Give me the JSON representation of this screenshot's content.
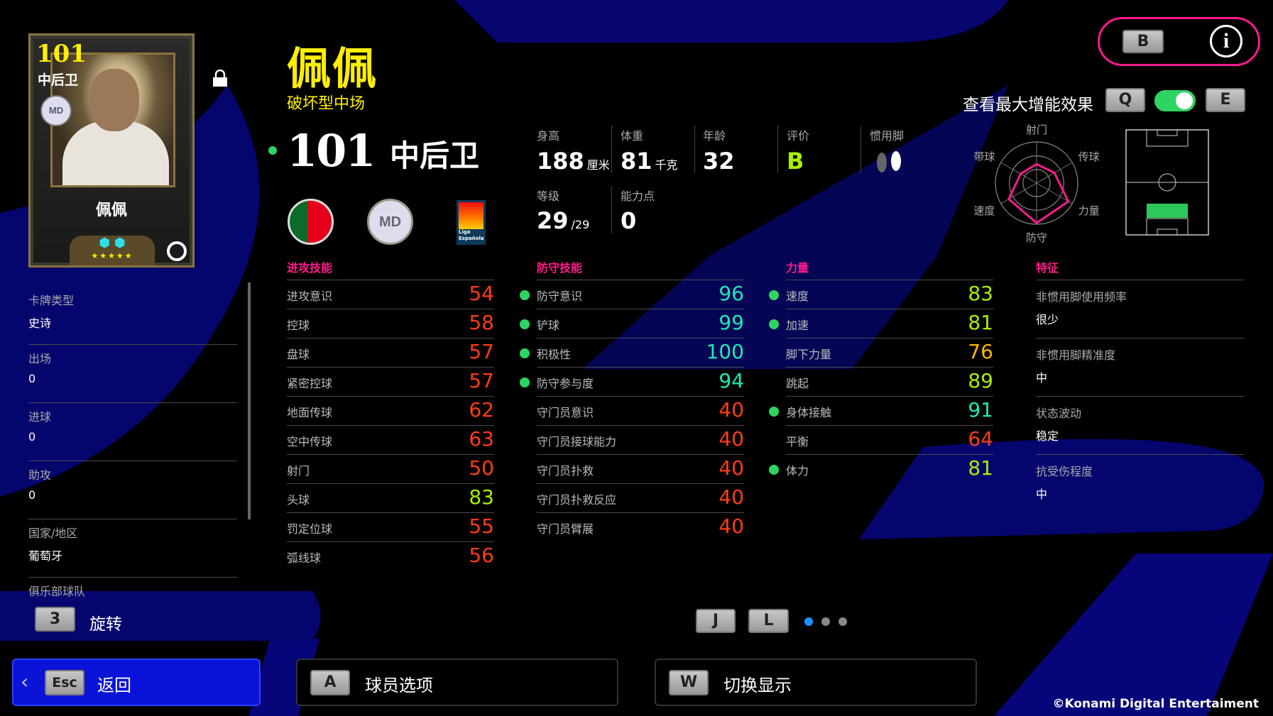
{
  "card": {
    "rating": "101",
    "position": "中后卫",
    "name": "佩佩",
    "club_abbr": "MD",
    "stars": "★★★★★"
  },
  "player": {
    "name": "佩佩",
    "playstyle": "破坏型中场",
    "rating": "101",
    "position": "中后卫"
  },
  "info": {
    "height": {
      "label": "身高",
      "value": "188",
      "unit": "厘米"
    },
    "weight": {
      "label": "体重",
      "value": "81",
      "unit": "千克"
    },
    "age": {
      "label": "年龄",
      "value": "32"
    },
    "grade": {
      "label": "评价",
      "value": "B"
    },
    "foot": {
      "label": "惯用脚",
      "icon": "footprints-icon"
    },
    "level": {
      "label": "等级",
      "value": "29",
      "max": "/29"
    },
    "points": {
      "label": "能力点",
      "value": "0"
    }
  },
  "badges": {
    "nation_flag": "portugal-flag-icon",
    "club_badge": "MD",
    "league": "Liga Española"
  },
  "left_panel": [
    {
      "label": "卡牌类型",
      "value": "史诗"
    },
    {
      "label": "出场",
      "value": "0"
    },
    {
      "label": "进球",
      "value": "0"
    },
    {
      "label": "助攻",
      "value": "0"
    },
    {
      "label": "国家/地区",
      "value": "葡萄牙"
    },
    {
      "label": "俱乐部球队",
      "value": ""
    }
  ],
  "stat_colors": {
    "elite": "#1de9b6",
    "high": "#a6f000",
    "mid": "#ffb400",
    "low": "#ff3c14"
  },
  "sections": [
    {
      "title": "进攻技能",
      "stats": [
        {
          "name": "进攻意识",
          "value": 54,
          "boost": false
        },
        {
          "name": "控球",
          "value": 58,
          "boost": false
        },
        {
          "name": "盘球",
          "value": 57,
          "boost": false
        },
        {
          "name": "紧密控球",
          "value": 57,
          "boost": false
        },
        {
          "name": "地面传球",
          "value": 62,
          "boost": false
        },
        {
          "name": "空中传球",
          "value": 63,
          "boost": false
        },
        {
          "name": "射门",
          "value": 50,
          "boost": false
        },
        {
          "name": "头球",
          "value": 83,
          "boost": false
        },
        {
          "name": "罚定位球",
          "value": 55,
          "boost": false
        },
        {
          "name": "弧线球",
          "value": 56,
          "boost": false
        }
      ]
    },
    {
      "title": "防守技能",
      "stats": [
        {
          "name": "防守意识",
          "value": 96,
          "boost": true
        },
        {
          "name": "铲球",
          "value": 99,
          "boost": true
        },
        {
          "name": "积极性",
          "value": 100,
          "boost": true
        },
        {
          "name": "防守参与度",
          "value": 94,
          "boost": true
        },
        {
          "name": "守门员意识",
          "value": 40,
          "boost": false
        },
        {
          "name": "守门员接球能力",
          "value": 40,
          "boost": false
        },
        {
          "name": "守门员扑救",
          "value": 40,
          "boost": false
        },
        {
          "name": "守门员扑救反应",
          "value": 40,
          "boost": false
        },
        {
          "name": "守门员臂展",
          "value": 40,
          "boost": false
        }
      ]
    },
    {
      "title": "力量",
      "stats": [
        {
          "name": "速度",
          "value": 83,
          "boost": true
        },
        {
          "name": "加速",
          "value": 81,
          "boost": true
        },
        {
          "name": "脚下力量",
          "value": 76,
          "boost": false
        },
        {
          "name": "跳起",
          "value": 89,
          "boost": false
        },
        {
          "name": "身体接触",
          "value": 91,
          "boost": true
        },
        {
          "name": "平衡",
          "value": 64,
          "boost": false
        },
        {
          "name": "体力",
          "value": 81,
          "boost": true
        }
      ]
    }
  ],
  "traits": {
    "title": "特征",
    "items": [
      {
        "label": "非惯用脚使用频率",
        "value": "很少"
      },
      {
        "label": "非惯用脚精准度",
        "value": "中"
      },
      {
        "label": "状态波动",
        "value": "稳定"
      },
      {
        "label": "抗受伤程度",
        "value": "中"
      }
    ]
  },
  "top_right": {
    "b_key": "B",
    "info_icon": "info-icon",
    "boost_label": "查看最大增能效果",
    "q_key": "Q",
    "e_key": "E",
    "boost_toggle_on": true
  },
  "radar": {
    "axes": [
      "射门",
      "传球",
      "力量",
      "防守",
      "速度",
      "带球"
    ],
    "values": [
      0.46,
      0.5,
      0.89,
      0.97,
      0.78,
      0.45
    ]
  },
  "pitch": {
    "highlighted_zone": "CB"
  },
  "rotate": {
    "key": "3",
    "label": "旋转"
  },
  "pager": {
    "prev_key": "J",
    "next_key": "L",
    "pages": 3,
    "current": 1
  },
  "bottom": {
    "back": {
      "key": "Esc",
      "label": "返回"
    },
    "options": {
      "key": "A",
      "label": "球员选项"
    },
    "switch": {
      "key": "W",
      "label": "切换显示"
    }
  },
  "copyright": "©Konami Digital Entertaiment",
  "colors": {
    "accent_pink": "#ff1a8c",
    "name_yellow": "#ffee00",
    "boost_green": "#2ed462",
    "bg_blue": "#0a0a8a",
    "back_blue": "#0a14d8"
  }
}
